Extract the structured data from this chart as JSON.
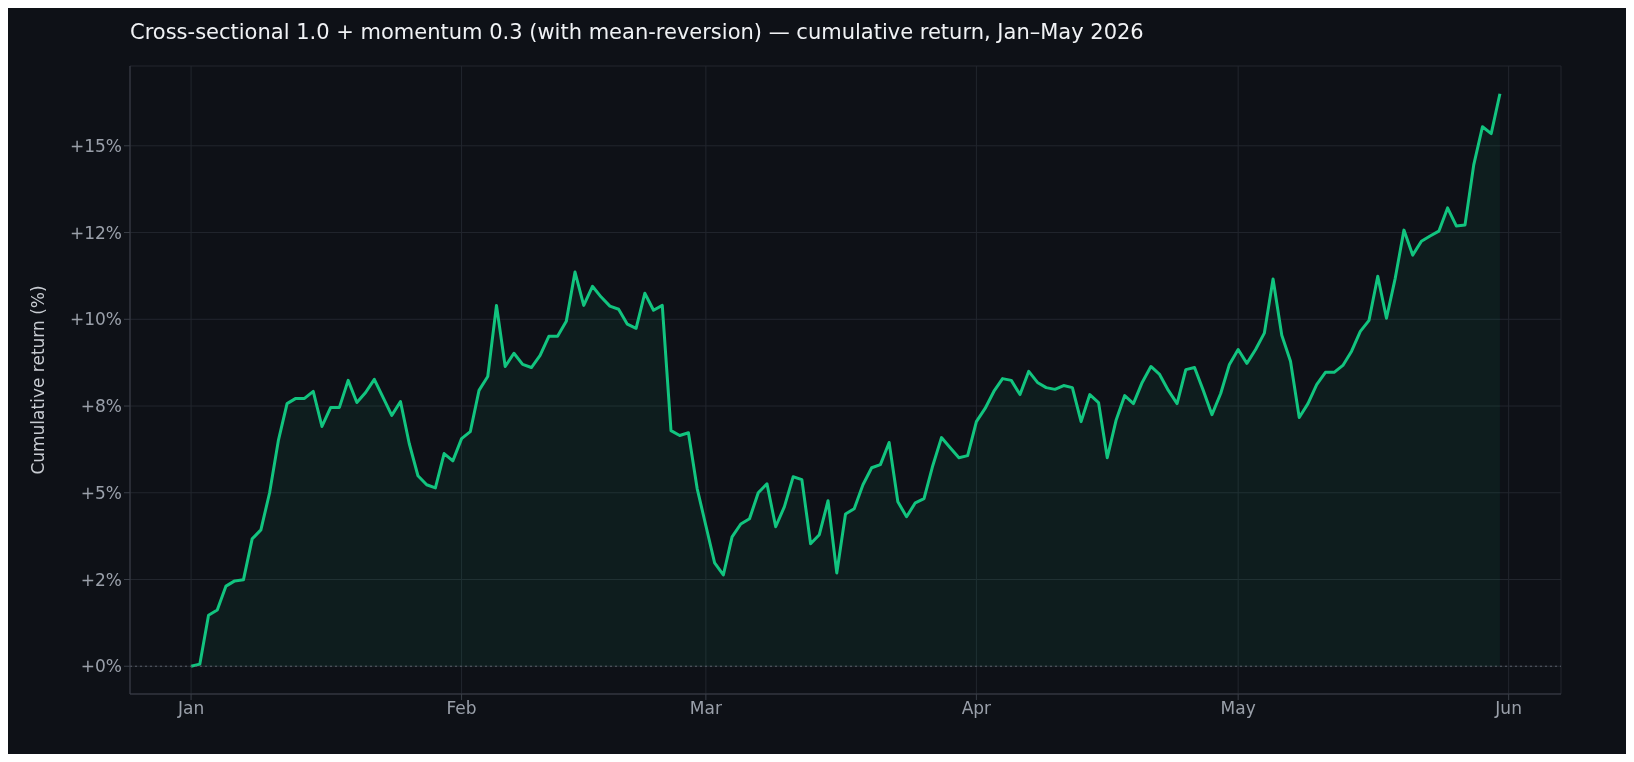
{
  "chart_data": {
    "type": "area",
    "title": "Cross-sectional 1.0 + momentum 0.3 (with mean-reversion) — cumulative return, Jan–May 2026",
    "ylabel": "Cumulative return (%)",
    "x": [
      "2026-01-01",
      "2026-01-02",
      "2026-01-03",
      "2026-01-04",
      "2026-01-05",
      "2026-01-06",
      "2026-01-07",
      "2026-01-08",
      "2026-01-09",
      "2026-01-10",
      "2026-01-11",
      "2026-01-12",
      "2026-01-13",
      "2026-01-14",
      "2026-01-15",
      "2026-01-16",
      "2026-01-17",
      "2026-01-18",
      "2026-01-19",
      "2026-01-20",
      "2026-01-21",
      "2026-01-22",
      "2026-01-23",
      "2026-01-24",
      "2026-01-25",
      "2026-01-26",
      "2026-01-27",
      "2026-01-28",
      "2026-01-29",
      "2026-01-30",
      "2026-01-31",
      "2026-02-01",
      "2026-02-02",
      "2026-02-03",
      "2026-02-04",
      "2026-02-05",
      "2026-02-06",
      "2026-02-07",
      "2026-02-08",
      "2026-02-09",
      "2026-02-10",
      "2026-02-11",
      "2026-02-12",
      "2026-02-13",
      "2026-02-14",
      "2026-02-15",
      "2026-02-16",
      "2026-02-17",
      "2026-02-18",
      "2026-02-19",
      "2026-02-20",
      "2026-02-21",
      "2026-02-22",
      "2026-02-23",
      "2026-02-24",
      "2026-02-25",
      "2026-02-26",
      "2026-02-27",
      "2026-02-28",
      "2026-03-01",
      "2026-03-02",
      "2026-03-03",
      "2026-03-04",
      "2026-03-05",
      "2026-03-06",
      "2026-03-07",
      "2026-03-08",
      "2026-03-09",
      "2026-03-10",
      "2026-03-11",
      "2026-03-12",
      "2026-03-13",
      "2026-03-14",
      "2026-03-15",
      "2026-03-16",
      "2026-03-17",
      "2026-03-18",
      "2026-03-19",
      "2026-03-20",
      "2026-03-21",
      "2026-03-22",
      "2026-03-23",
      "2026-03-24",
      "2026-03-25",
      "2026-03-26",
      "2026-03-27",
      "2026-03-28",
      "2026-03-29",
      "2026-03-30",
      "2026-03-31",
      "2026-04-01",
      "2026-04-02",
      "2026-04-03",
      "2026-04-04",
      "2026-04-05",
      "2026-04-06",
      "2026-04-07",
      "2026-04-08",
      "2026-04-09",
      "2026-04-10",
      "2026-04-11",
      "2026-04-12",
      "2026-04-13",
      "2026-04-14",
      "2026-04-15",
      "2026-04-16",
      "2026-04-17",
      "2026-04-18",
      "2026-04-19",
      "2026-04-20",
      "2026-04-21",
      "2026-04-22",
      "2026-04-23",
      "2026-04-24",
      "2026-04-25",
      "2026-04-26",
      "2026-04-27",
      "2026-04-28",
      "2026-04-29",
      "2026-04-30",
      "2026-05-01",
      "2026-05-02",
      "2026-05-03",
      "2026-05-04",
      "2026-05-05",
      "2026-05-06",
      "2026-05-07",
      "2026-05-08",
      "2026-05-09",
      "2026-05-10",
      "2026-05-11",
      "2026-05-12",
      "2026-05-13",
      "2026-05-14",
      "2026-05-15",
      "2026-05-16",
      "2026-05-17",
      "2026-05-18",
      "2026-05-19",
      "2026-05-20",
      "2026-05-21",
      "2026-05-22",
      "2026-05-23",
      "2026-05-24",
      "2026-05-25",
      "2026-05-26",
      "2026-05-27",
      "2026-05-28",
      "2026-05-29",
      "2026-05-30",
      "2026-05-31"
    ],
    "series": [
      {
        "color": "#12c47f",
        "values": [
          0,
          0.06,
          1.47,
          1.62,
          2.31,
          2.46,
          2.49,
          3.67,
          3.93,
          5.0,
          6.5,
          7.57,
          7.72,
          7.72,
          7.92,
          6.91,
          7.46,
          7.46,
          8.24,
          7.6,
          7.89,
          8.27,
          7.75,
          7.23,
          7.63,
          6.42,
          5.49,
          5.23,
          5.14,
          6.13,
          5.92,
          6.56,
          6.76,
          7.95,
          8.35,
          10.4,
          8.64,
          9.02,
          8.7,
          8.61,
          8.96,
          9.51,
          9.51,
          9.94,
          11.36,
          10.4,
          10.95,
          10.64,
          10.38,
          10.29,
          9.86,
          9.74,
          10.75,
          10.26,
          10.4,
          6.79,
          6.65,
          6.73,
          5.12,
          4.05,
          2.98,
          2.63,
          3.73,
          4.1,
          4.25,
          5.0,
          5.26,
          4.02,
          4.6,
          5.46,
          5.38,
          3.53,
          3.79,
          4.77,
          2.69,
          4.39,
          4.54,
          5.23,
          5.72,
          5.81,
          6.45,
          4.74,
          4.31,
          4.71,
          4.83,
          5.78,
          6.59,
          6.3,
          6.01,
          6.07,
          7.05,
          7.43,
          7.92,
          8.29,
          8.24,
          7.83,
          8.5,
          8.18,
          8.03,
          7.98,
          8.09,
          8.03,
          7.05,
          7.83,
          7.6,
          6.01,
          7.08,
          7.8,
          7.57,
          8.18,
          8.64,
          8.41,
          7.95,
          7.57,
          8.55,
          8.61,
          7.95,
          7.25,
          7.86,
          8.7,
          9.13,
          8.73,
          9.13,
          9.6,
          11.16,
          9.54,
          8.79,
          7.17,
          7.57,
          8.12,
          8.47,
          8.47,
          8.67,
          9.08,
          9.65,
          9.97,
          11.24,
          10.03,
          11.18,
          12.57,
          11.85,
          12.25,
          12.4,
          12.54,
          13.21,
          12.69,
          12.72,
          14.45,
          15.55,
          15.35,
          16.5
        ]
      }
    ],
    "xlim": [
      "2025-12-25",
      "2026-06-07"
    ],
    "xticks": [
      {
        "value": "2026-01-01",
        "label": "Jan"
      },
      {
        "value": "2026-02-01",
        "label": "Feb"
      },
      {
        "value": "2026-03-01",
        "label": "Mar"
      },
      {
        "value": "2026-04-01",
        "label": "Apr"
      },
      {
        "value": "2026-05-01",
        "label": "May"
      },
      {
        "value": "2026-06-01",
        "label": "Jun"
      }
    ],
    "ylim": [
      -0.8,
      17.3
    ],
    "yticks": [
      {
        "value": 0,
        "label": "+0%"
      },
      {
        "value": 2.5,
        "label": "+2%"
      },
      {
        "value": 5,
        "label": "+5%"
      },
      {
        "value": 7.5,
        "label": "+8%"
      },
      {
        "value": 10,
        "label": "+10%"
      },
      {
        "value": 12.5,
        "label": "+12%"
      },
      {
        "value": 15,
        "label": "+15%"
      }
    ],
    "ref_lines": [
      {
        "axis": "y",
        "value": 0,
        "color": "#5a606b",
        "line_style": "dotted"
      }
    ],
    "grid": true,
    "line_style": "solid",
    "marker": "none"
  }
}
